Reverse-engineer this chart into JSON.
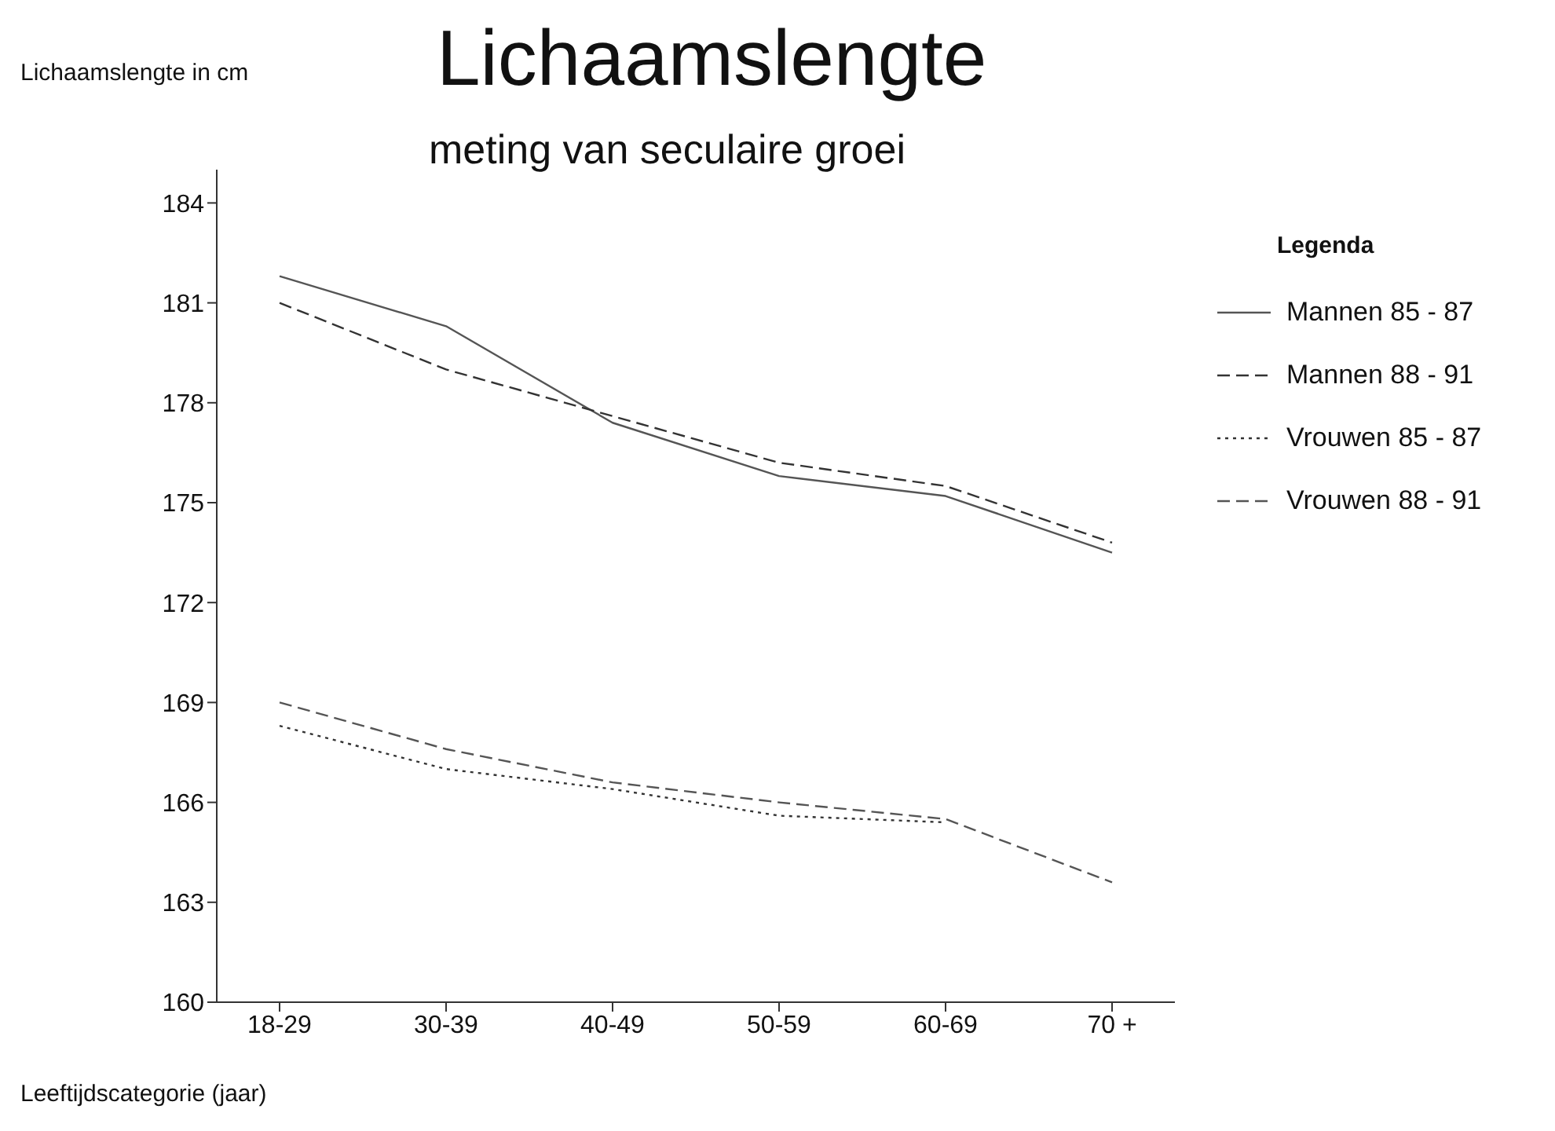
{
  "chart_data": {
    "type": "line",
    "title": "Lichaamslengte",
    "subtitle": "meting van seculaire groei",
    "ylabel": "Lichaamslengte in cm",
    "xlabel": "Leeftijdscategorie (jaar)",
    "legend_title": "Legenda",
    "categories": [
      "18-29",
      "30-39",
      "40-49",
      "50-59",
      "60-69",
      "70 +"
    ],
    "series": [
      {
        "name": "Mannen 85 - 87",
        "color": "#555555",
        "line_style": "solid",
        "values": [
          181.8,
          180.3,
          177.4,
          175.8,
          175.2,
          173.5
        ]
      },
      {
        "name": "Mannen 88 - 91",
        "color": "#333333",
        "line_style": "dashed",
        "values": [
          181.0,
          179.0,
          177.6,
          176.2,
          175.5,
          173.8
        ]
      },
      {
        "name": "Vrouwen 85 - 87",
        "color": "#333333",
        "line_style": "dotted",
        "values": [
          168.3,
          167.0,
          166.4,
          165.6,
          165.4,
          null
        ]
      },
      {
        "name": "Vrouwen 88 - 91",
        "color": "#555555",
        "line_style": "dashed",
        "values": [
          169.0,
          167.6,
          166.6,
          166.0,
          165.5,
          163.6
        ]
      }
    ],
    "ylim": [
      160,
      185
    ],
    "yticks": [
      160,
      163,
      166,
      169,
      172,
      175,
      178,
      181,
      184
    ],
    "grid": false,
    "legend": "right",
    "marker": "none"
  }
}
